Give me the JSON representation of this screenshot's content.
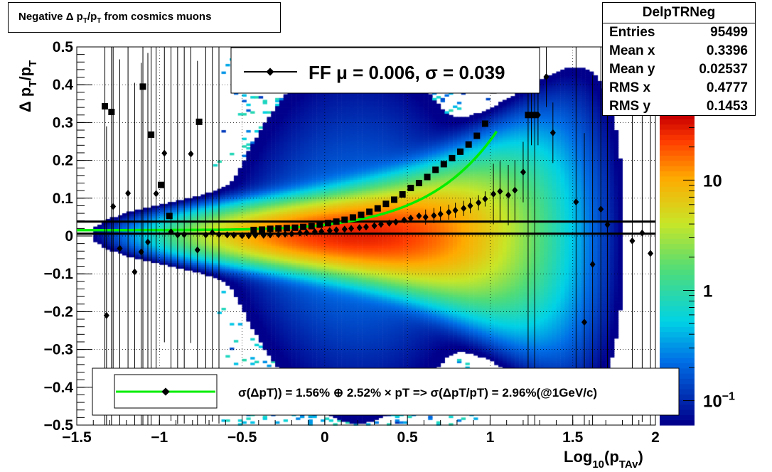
{
  "title": "Negative Δ p_T/p_T from cosmics muons",
  "stats": {
    "name": "DelpTRNeg",
    "rows": [
      {
        "key": "Entries",
        "value": "95499"
      },
      {
        "key": "Mean x",
        "value": "0.3396"
      },
      {
        "key": "Mean y",
        "value": "0.02537"
      },
      {
        "key": "RMS x",
        "value": "0.4777"
      },
      {
        "key": "RMS y",
        "value": "0.1453"
      }
    ]
  },
  "legend_top": {
    "label": "FF μ =  0.006, σ =   0.039"
  },
  "legend_bottom": {
    "label": "σ(ΔpT)) =  1.56% ⊕  2.52% × pT => σ(ΔpT/pT) =  2.96%(@1GeV/c)"
  },
  "colors": {
    "fit_curve": "#00ee00",
    "markers": "#000000",
    "lines": "#000000"
  },
  "chart_data": {
    "type": "heatmap",
    "title": "Negative Δ p_T/p_T from cosmics muons",
    "xlabel": "Log_10(p_TAv)",
    "ylabel": "Δ p_T/p_T",
    "xlim": [
      -1.5,
      2.0
    ],
    "ylim": [
      -0.5,
      0.5
    ],
    "x_ticks": [
      "−1.5",
      "−1",
      "−0.5",
      "0",
      "0.5",
      "1",
      "1.5",
      "2"
    ],
    "y_ticks": [
      "−0.5",
      "−0.4",
      "−0.3",
      "−0.2",
      "−0.1",
      "0",
      "0.1",
      "0.2",
      "0.3",
      "0.4",
      "0.5"
    ],
    "grid": true,
    "colorbar": {
      "scale": "log",
      "range": [
        0.06,
        40
      ],
      "tick_labels": [
        "10",
        "1",
        "10^{−1}"
      ]
    },
    "sigma_points": {
      "marker": "square",
      "x": [
        -1.33,
        -1.29,
        -1.1,
        -1.05,
        -0.99,
        -0.94,
        -0.76,
        -0.43,
        -0.38,
        -0.33,
        -0.28,
        -0.23,
        -0.18,
        -0.13,
        -0.08,
        -0.03,
        0.02,
        0.07,
        0.12,
        0.17,
        0.22,
        0.27,
        0.32,
        0.37,
        0.42,
        0.47,
        0.52,
        0.57,
        0.62,
        0.67,
        0.72,
        0.77,
        0.82,
        0.87,
        0.92,
        0.97,
        1.02,
        1.23,
        1.27
      ],
      "y": [
        0.343,
        0.328,
        0.395,
        0.268,
        0.135,
        0.053,
        0.302,
        0.016,
        0.017,
        0.019,
        0.02,
        0.021,
        0.022,
        0.024,
        0.026,
        0.03,
        0.034,
        0.038,
        0.043,
        0.049,
        0.056,
        0.064,
        0.073,
        0.085,
        0.096,
        0.11,
        0.127,
        0.14,
        0.156,
        0.175,
        0.19,
        0.206,
        0.223,
        0.242,
        0.265,
        0.297,
        0.385,
        0.32,
        0.32
      ]
    },
    "mean_points": {
      "marker": "diamond",
      "x": [
        -1.32,
        -1.28,
        -1.24,
        -1.19,
        -1.15,
        -1.11,
        -1.07,
        -1.02,
        -0.97,
        -0.93,
        -0.89,
        -0.85,
        -0.81,
        -0.77,
        -0.72,
        -0.68,
        -0.64,
        -0.59,
        -0.55,
        -0.5,
        -0.46,
        -0.42,
        -0.37,
        -0.33,
        -0.28,
        -0.24,
        -0.2,
        -0.15,
        -0.11,
        -0.06,
        -0.02,
        0.03,
        0.07,
        0.12,
        0.16,
        0.21,
        0.25,
        0.3,
        0.34,
        0.39,
        0.43,
        0.48,
        0.52,
        0.57,
        0.61,
        0.66,
        0.7,
        0.75,
        0.79,
        0.84,
        0.88,
        0.93,
        0.97,
        1.02,
        1.06,
        1.11,
        1.15,
        1.2,
        1.25,
        1.29,
        1.34,
        1.38,
        1.52,
        1.57,
        1.62,
        1.67,
        1.71,
        1.86,
        1.92,
        1.97
      ],
      "y": [
        -0.21,
        0.078,
        -0.033,
        0.113,
        -0.095,
        -0.042,
        -0.016,
        0.112,
        0.219,
        0.011,
        0.003,
        0.004,
        0.217,
        -0.037,
        0.003,
        0.009,
        0.004,
        0.003,
        0.002,
        0.001,
        0.001,
        0.002,
        0.002,
        0.003,
        0.004,
        0.005,
        0.006,
        0.008,
        0.009,
        0.011,
        0.012,
        0.014,
        0.016,
        0.018,
        0.02,
        0.022,
        0.024,
        0.027,
        0.031,
        0.034,
        0.037,
        0.042,
        0.047,
        0.053,
        0.05,
        0.054,
        0.058,
        0.063,
        0.068,
        0.073,
        0.08,
        0.088,
        0.098,
        0.111,
        0.118,
        0.108,
        0.121,
        0.169,
        0.32,
        0.32,
        0.421,
        0.273,
        0.09,
        -0.228,
        -0.075,
        0.071,
        0.03,
        -0.013,
        0.008,
        -0.046
      ]
    },
    "fit_curve": {
      "name": "FF",
      "color": "#00ee00",
      "formula": "sqrt(0.0156^2 + (0.0252*10^x)^2)",
      "x_range": [
        -1.5,
        1.05
      ]
    },
    "horizontal_lines": [
      0.038,
      0.006
    ]
  }
}
